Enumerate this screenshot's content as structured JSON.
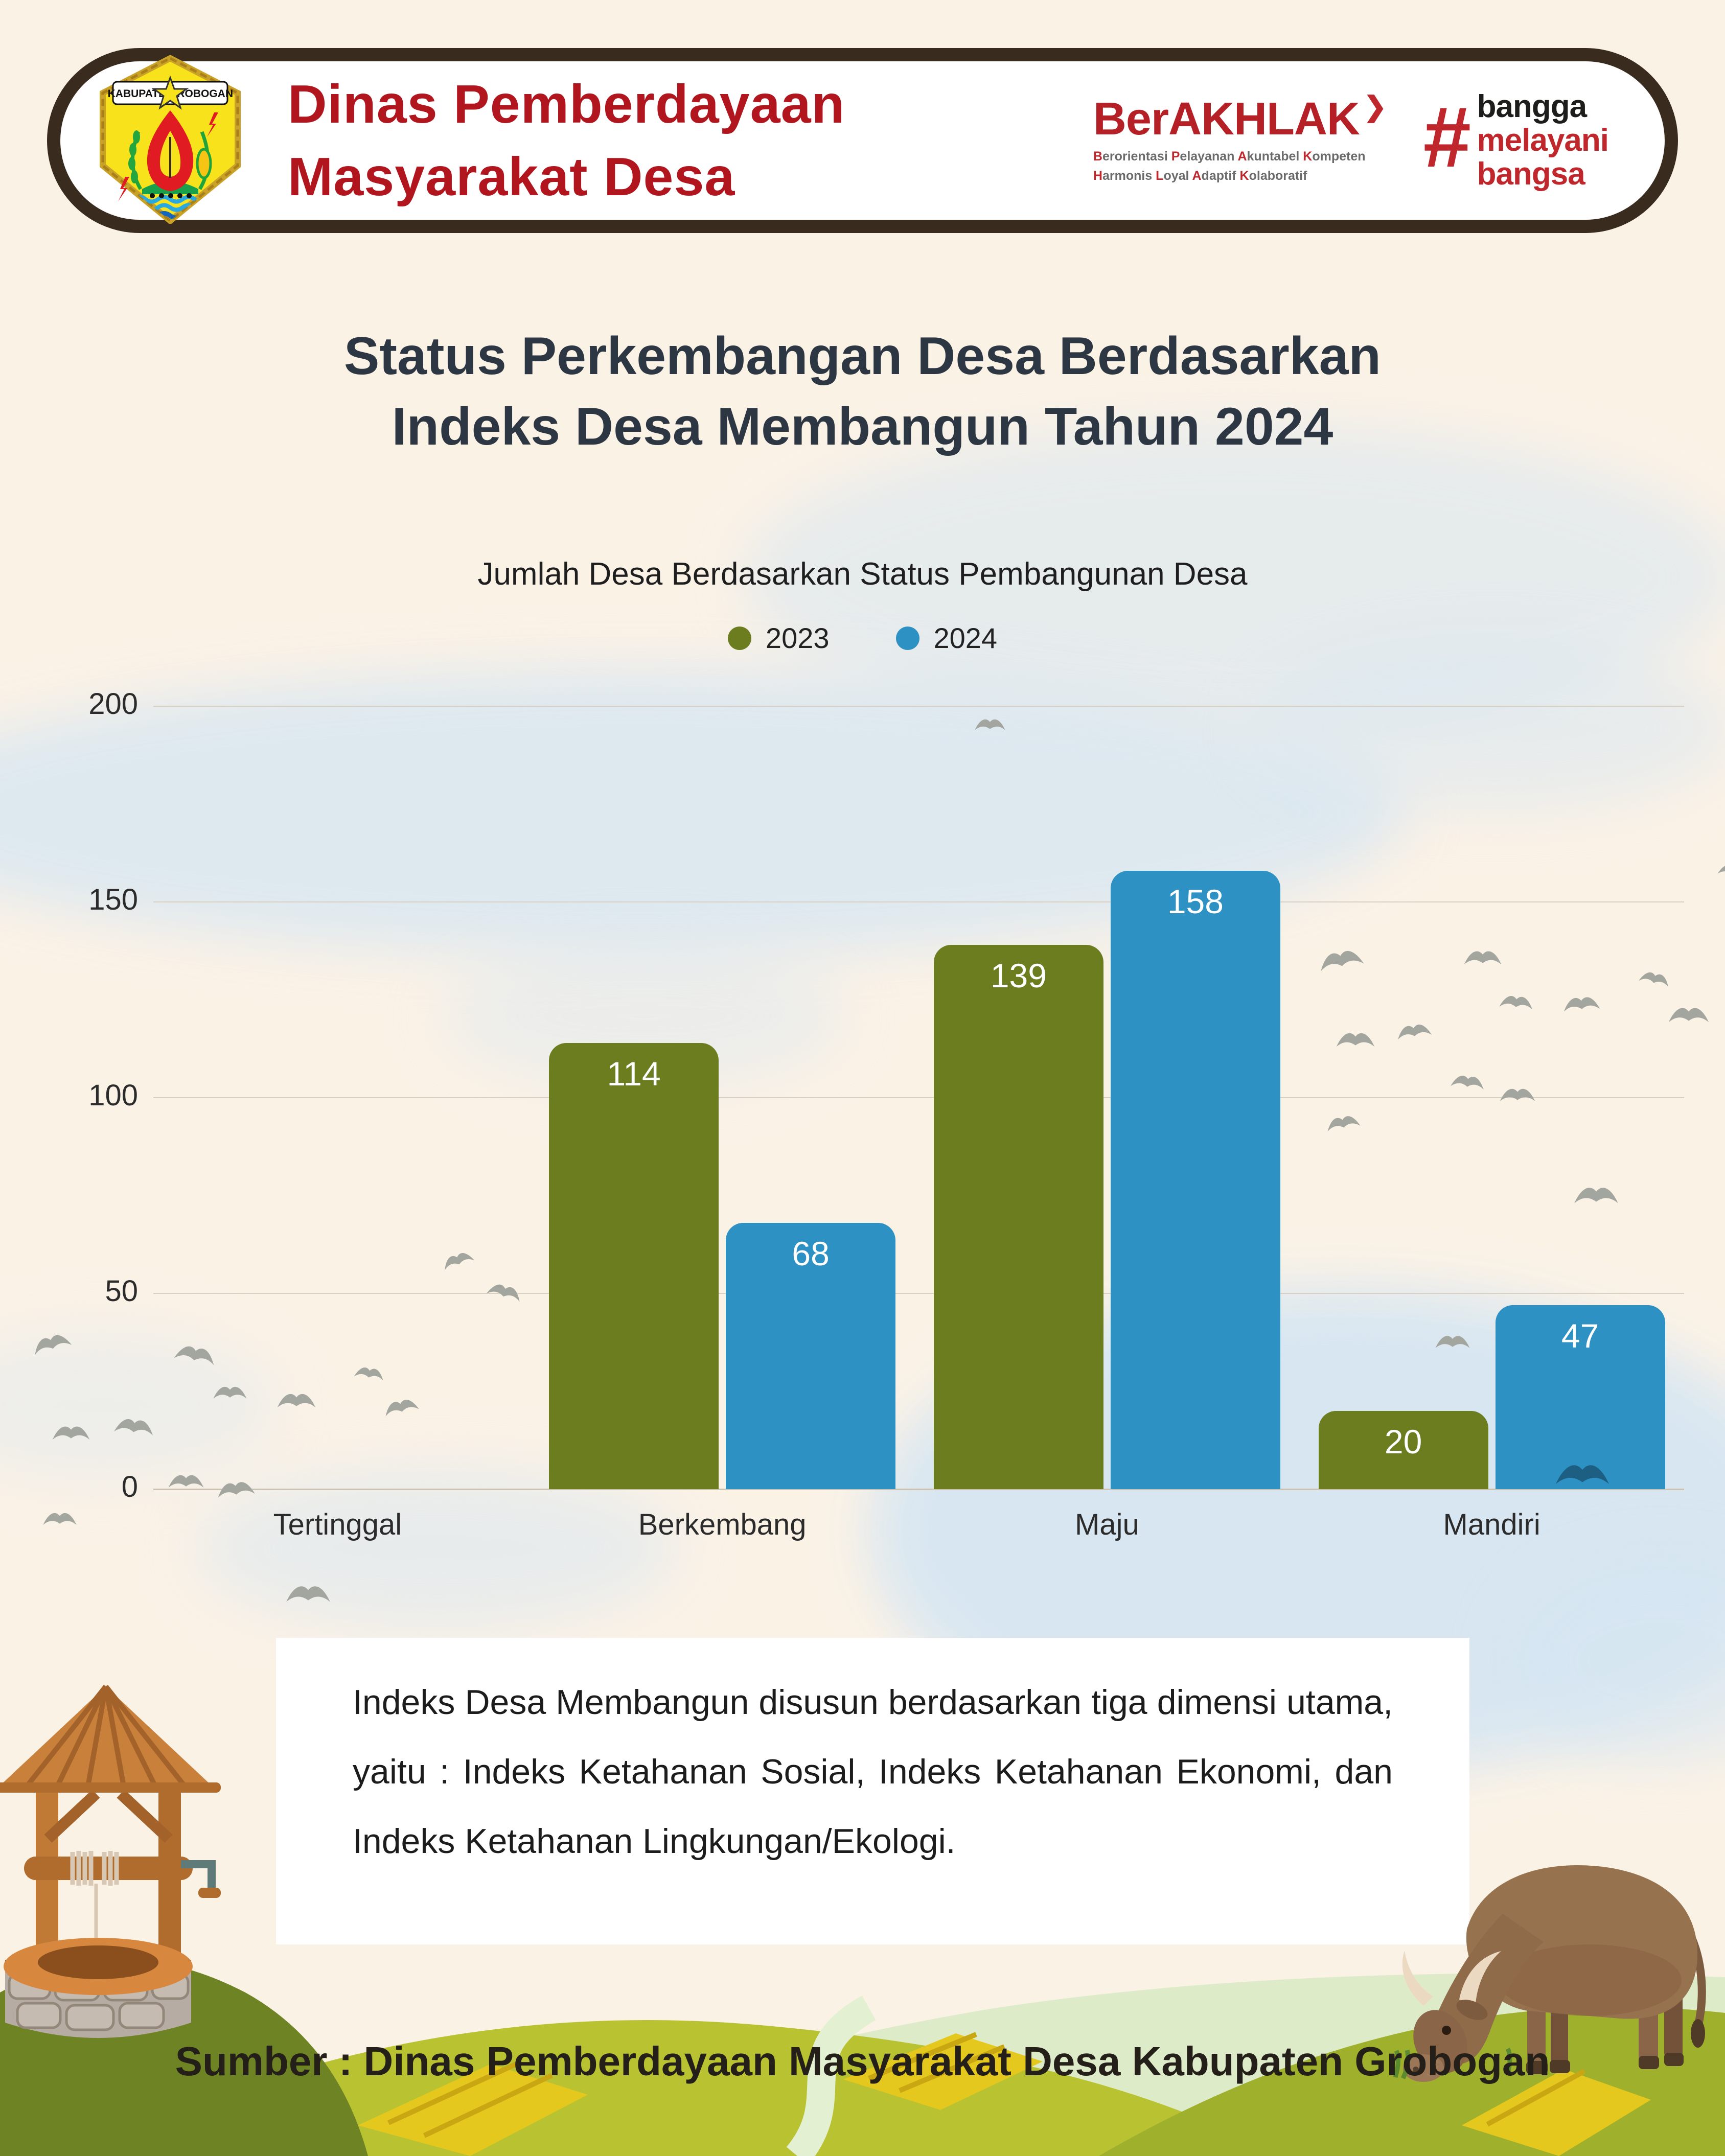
{
  "palette": {
    "background": "#FBF2E6",
    "header_border": "#3A2B1F",
    "header_bg": "#FFFFFF",
    "agency_red": "#B1161F",
    "berakhlak_red": "#B42025",
    "bangga_red": "#C0272D",
    "bangga_black": "#1D1D1B",
    "title_color": "#2C3743",
    "bar_2023": "#6C7D20",
    "bar_2024": "#2E91C3",
    "gridline": "#D8D0C3",
    "cloud": "#D6E6F2",
    "bird_gray": "#A3A69F",
    "bird_dark_blue": "#1C5F82",
    "footer_text": "#241F18"
  },
  "header": {
    "agency_line1": "Dinas Pemberdayaan",
    "agency_line2": "Masyarakat Desa",
    "logo_banner_left": "KABUPATEN",
    "logo_banner_right": "GROBOGAN",
    "berakhlak": {
      "name": "BerAKHLAK",
      "arrow": "❯",
      "tagline_line1": [
        "Berorientasi",
        "Pelayanan",
        "Akuntabel",
        "Kompeten"
      ],
      "tagline_line2": [
        "Harmonis",
        "Loyal",
        "Adaptif",
        "Kolaboratif"
      ]
    },
    "bangga": {
      "hashtag": "#",
      "words": [
        {
          "text": "bangga",
          "color": "#1D1D1B"
        },
        {
          "text": "melayani",
          "color": "#C0272D"
        },
        {
          "text": "bangsa",
          "color": "#C0272D"
        }
      ]
    }
  },
  "title": {
    "line1": "Status Perkembangan Desa Berdasarkan",
    "line2": "Indeks Desa Membangun Tahun 2024"
  },
  "chart_data": {
    "type": "bar",
    "title": "Jumlah Desa Berdasarkan Status Pembangunan Desa",
    "categories": [
      "Tertinggal",
      "Berkembang",
      "Maju",
      "Mandiri"
    ],
    "series": [
      {
        "name": "2023",
        "color": "#6C7D20",
        "values": [
          0,
          114,
          139,
          20
        ]
      },
      {
        "name": "2024",
        "color": "#2E91C3",
        "values": [
          0,
          68,
          158,
          47
        ]
      }
    ],
    "xlabel": "",
    "ylabel": "",
    "ylim": [
      0,
      200
    ],
    "yticks": [
      0,
      50,
      100,
      150,
      200
    ],
    "grid": true,
    "legend_position": "top",
    "value_labels": "inside-top"
  },
  "description": "Indeks Desa Membangun disusun berdasarkan tiga dimensi utama, yaitu : Indeks Ketahanan Sosial, Indeks Ketahanan Ekonomi, dan Indeks Ketahanan Lingkungan/Ekologi.",
  "footer": {
    "source": "Sumber : Dinas Pemberdayaan Masyarakat Desa Kabupaten Grobogan"
  }
}
